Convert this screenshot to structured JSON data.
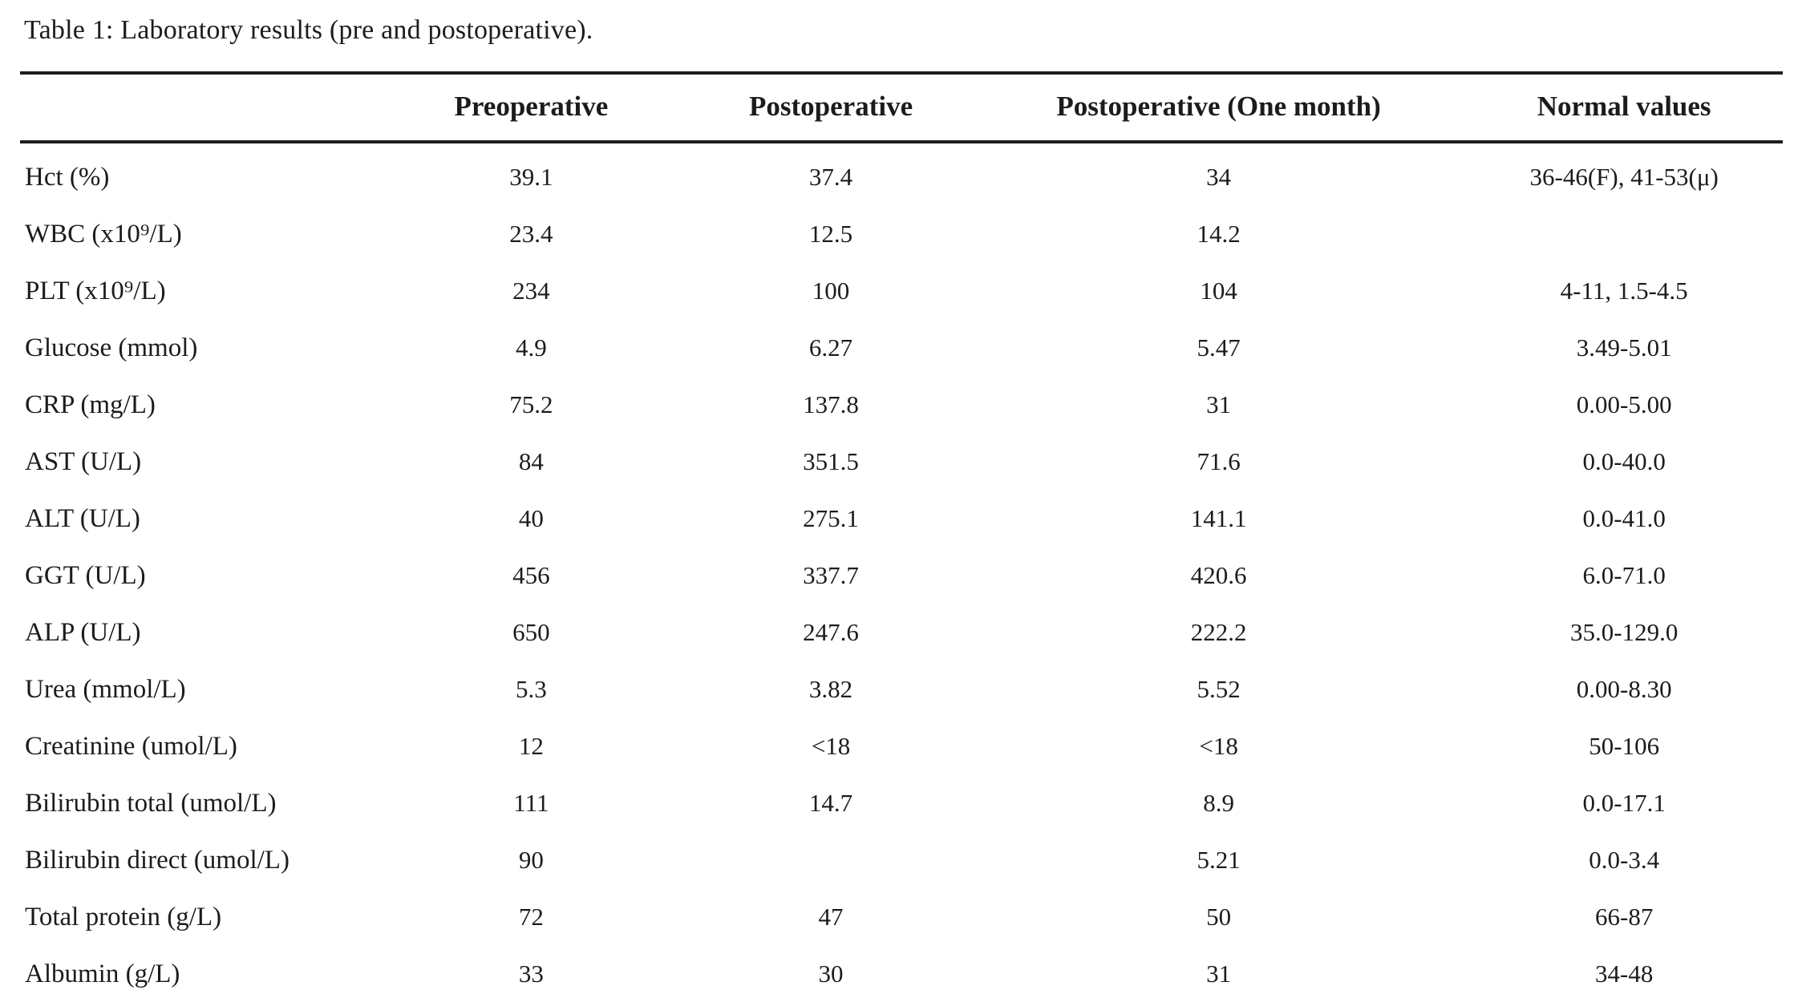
{
  "title": "Table 1: Laboratory results (pre and postoperative).",
  "colors": {
    "background": "#ffffff",
    "text": "#1c1c1c",
    "rule": "#1c1c1c"
  },
  "table": {
    "headers": [
      "",
      "Preoperative",
      "Postoperative",
      "Postoperative (One month)",
      "Normal values"
    ],
    "rows": [
      {
        "label": "Hct (%)",
        "values": [
          "39.1",
          "37.4",
          "34",
          "36-46(F), 41-53(μ)"
        ]
      },
      {
        "label": "WBC (x10⁹/L)",
        "values": [
          "23.4",
          "12.5",
          "14.2",
          ""
        ]
      },
      {
        "label": "PLT (x10⁹/L)",
        "values": [
          "234",
          "100",
          "104",
          "4-11, 1.5-4.5"
        ]
      },
      {
        "label": "Glucose (mmol)",
        "values": [
          "4.9",
          "6.27",
          "5.47",
          "3.49-5.01"
        ]
      },
      {
        "label": "CRP (mg/L)",
        "values": [
          "75.2",
          "137.8",
          "31",
          "0.00-5.00"
        ]
      },
      {
        "label": "AST (U/L)",
        "values": [
          "84",
          "351.5",
          "71.6",
          "0.0-40.0"
        ]
      },
      {
        "label": "ALT (U/L)",
        "values": [
          "40",
          "275.1",
          "141.1",
          "0.0-41.0"
        ]
      },
      {
        "label": "GGT (U/L)",
        "values": [
          "456",
          "337.7",
          "420.6",
          "6.0-71.0"
        ]
      },
      {
        "label": "ALP (U/L)",
        "values": [
          "650",
          "247.6",
          "222.2",
          "35.0-129.0"
        ]
      },
      {
        "label": "Urea (mmol/L)",
        "values": [
          "5.3",
          "3.82",
          "5.52",
          "0.00-8.30"
        ]
      },
      {
        "label": "Creatinine (umol/L)",
        "values": [
          "12",
          "<18",
          "<18",
          "50-106"
        ]
      },
      {
        "label": "Bilirubin total (umol/L)",
        "values": [
          "111",
          "14.7",
          "8.9",
          "0.0-17.1"
        ]
      },
      {
        "label": "Bilirubin direct (umol/L)",
        "values": [
          "90",
          "",
          "5.21",
          "0.0-3.4"
        ]
      },
      {
        "label": "Total protein (g/L)",
        "values": [
          "72",
          "47",
          "50",
          "66-87"
        ]
      },
      {
        "label": "Albumin (g/L)",
        "values": [
          "33",
          "30",
          "31",
          "34-48"
        ]
      }
    ]
  }
}
